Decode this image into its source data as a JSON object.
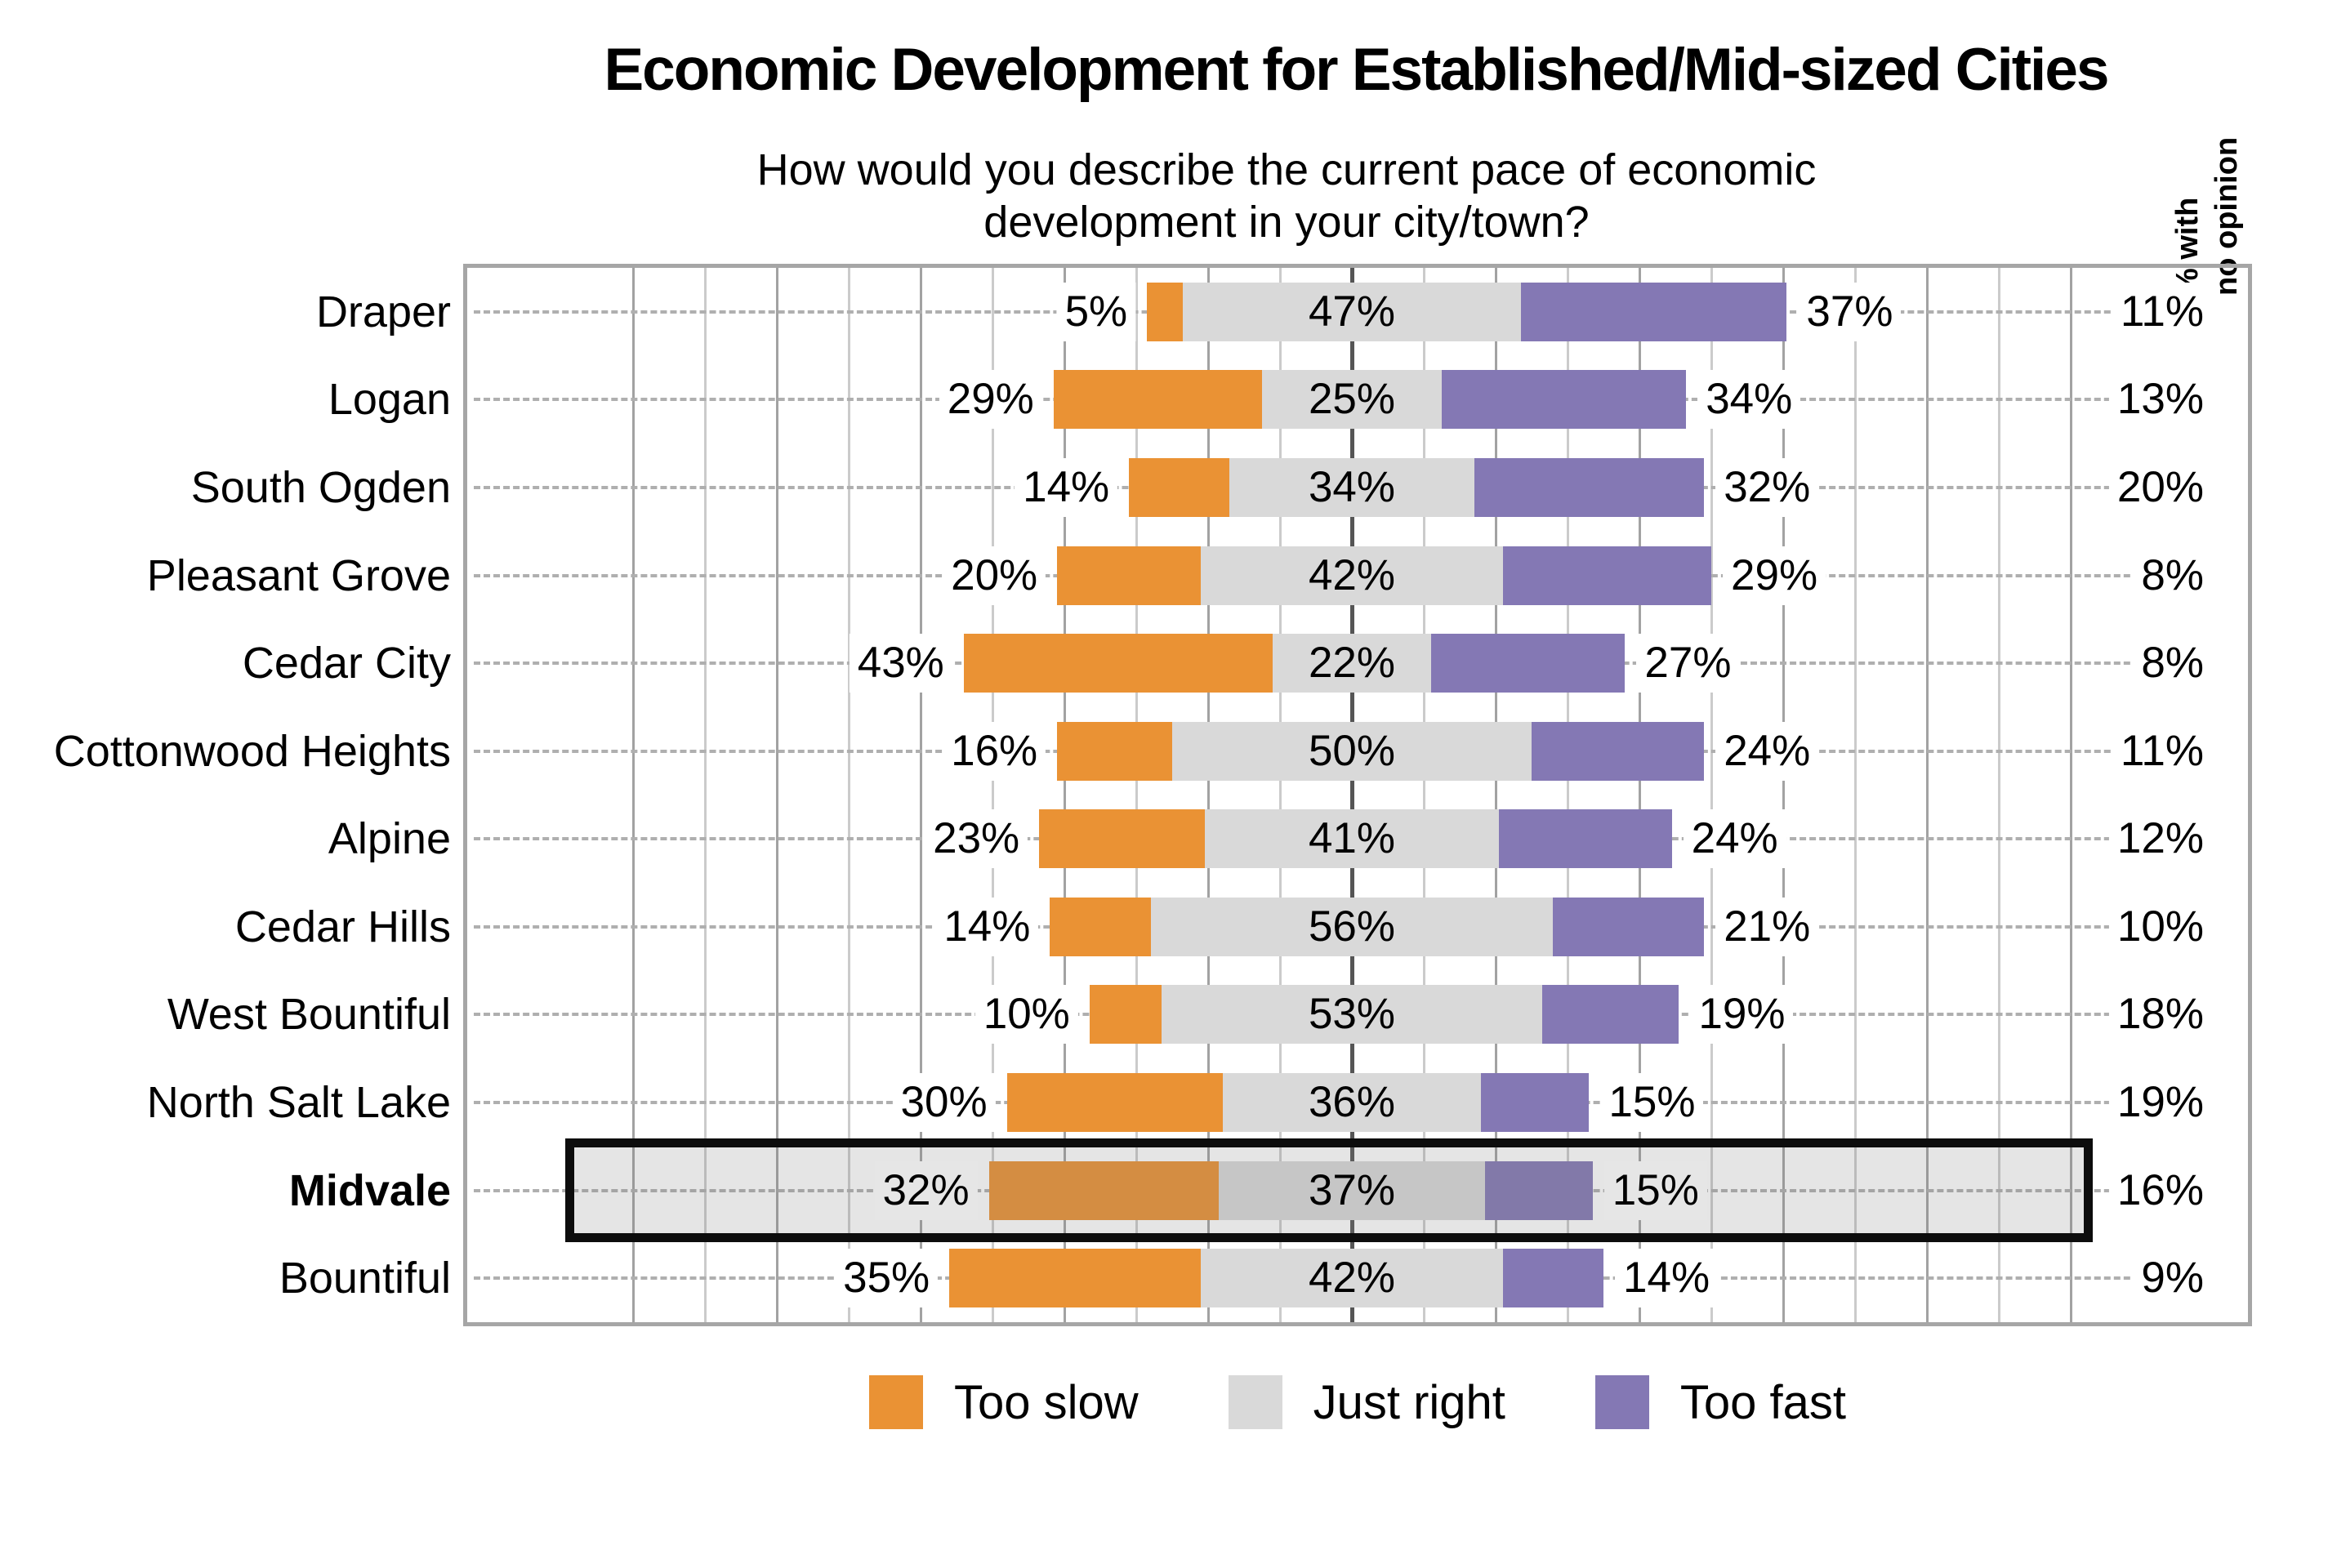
{
  "header": {
    "title": "Economic Development for Established/Mid-sized Cities",
    "subtitle_line1": "How would you describe the current pace of economic",
    "subtitle_line2": "development in your city/town?",
    "right_column_header_line1": "% with",
    "right_column_header_line2": "no opinion"
  },
  "colors": {
    "too_slow": "#EA9234",
    "just_right": "#D9D9D9",
    "too_fast": "#8478B4",
    "plot_border": "#A6A6A6",
    "gridline_minor": "#CBCBCB",
    "gridline_major": "#A2A2A2",
    "center_line": "#555555",
    "row_dash": "#AFAFAF",
    "highlight_border": "#0d0d0d"
  },
  "chart_data": {
    "type": "bar",
    "variant": "horizontal-diverging-stacked",
    "title": "Economic Development for Established/Mid-sized Cities",
    "subtitle": "How would you describe the current pace of economic development in your city/town?",
    "categories": [
      "Draper",
      "Logan",
      "South Ogden",
      "Pleasant Grove",
      "Cedar City",
      "Cottonwood Heights",
      "Alpine",
      "Cedar Hills",
      "West Bountiful",
      "North Salt Lake",
      "Midvale",
      "Bountiful"
    ],
    "series": [
      {
        "name": "Too slow",
        "color": "#EA9234",
        "values": [
          5,
          29,
          14,
          20,
          43,
          16,
          23,
          14,
          10,
          30,
          32,
          35
        ]
      },
      {
        "name": "Just right",
        "color": "#D9D9D9",
        "values": [
          47,
          25,
          34,
          42,
          22,
          50,
          41,
          56,
          53,
          36,
          37,
          42
        ]
      },
      {
        "name": "Too fast",
        "color": "#8478B4",
        "values": [
          37,
          34,
          32,
          29,
          27,
          24,
          24,
          21,
          19,
          15,
          15,
          14
        ]
      }
    ],
    "no_opinion_column": {
      "header": "% with no opinion",
      "values": [
        11,
        13,
        20,
        8,
        8,
        11,
        12,
        10,
        18,
        19,
        16,
        9
      ]
    },
    "highlighted_category": "Midvale",
    "value_suffix": "%",
    "axis": {
      "unit": "%",
      "center_value": 0,
      "gridline_step_pct": 10,
      "gridline_extent_pct": 100,
      "just_right_centered_on_zero": true,
      "x_tick_labels_shown": false
    },
    "legend_position": "bottom",
    "grid": true
  }
}
